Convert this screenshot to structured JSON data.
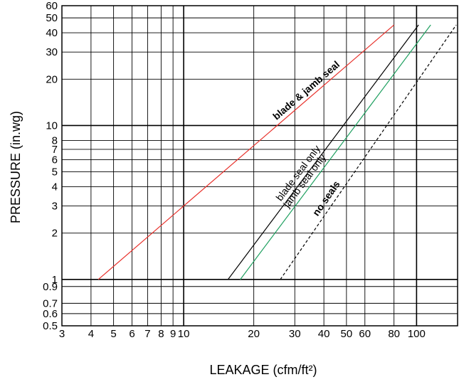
{
  "chart_data": {
    "type": "line",
    "xscale": "log",
    "yscale": "log",
    "xlim": [
      3,
      150
    ],
    "ylim": [
      0.5,
      60
    ],
    "grid": true,
    "xlabel": "LEAKAGE (cfm/ft²)",
    "ylabel": "PRESSURE (in.wg)",
    "x_ticks": [
      3,
      4,
      5,
      6,
      7,
      8,
      9,
      10,
      20,
      30,
      40,
      50,
      60,
      80,
      100
    ],
    "x_tick_labels": [
      "3",
      "4",
      "5",
      "6",
      "7",
      "8",
      "9",
      "10",
      "20",
      "30",
      "40",
      "50",
      "60",
      "80",
      "100"
    ],
    "y_ticks": [
      0.5,
      0.6,
      0.7,
      0.9,
      1,
      2,
      3,
      4,
      5,
      6,
      7,
      8,
      10,
      20,
      30,
      40,
      50,
      60
    ],
    "y_tick_labels": [
      "0.5",
      "0.6",
      "0.7",
      "0.9",
      "1",
      "2",
      "3",
      "4",
      "5",
      "6",
      "7",
      "8",
      "10",
      "20",
      "30",
      "40",
      "50",
      "60"
    ],
    "series": [
      {
        "name": "blade & jamb seal",
        "color": "#e8302a",
        "dash": false,
        "bold_label": true,
        "points": [
          [
            4.3,
            1
          ],
          [
            80,
            45
          ]
        ]
      },
      {
        "name": "blade seal only",
        "color": "#000000",
        "dash": false,
        "bold_label": false,
        "points": [
          [
            15.5,
            1
          ],
          [
            102,
            45
          ]
        ]
      },
      {
        "name": "jamb seal only",
        "color": "#1fa060",
        "dash": false,
        "bold_label": false,
        "points": [
          [
            17.5,
            1
          ],
          [
            115,
            45
          ]
        ]
      },
      {
        "name": "no seals",
        "color": "#000000",
        "dash": true,
        "bold_label": true,
        "points": [
          [
            26,
            1
          ],
          [
            148,
            45
          ]
        ]
      }
    ]
  }
}
